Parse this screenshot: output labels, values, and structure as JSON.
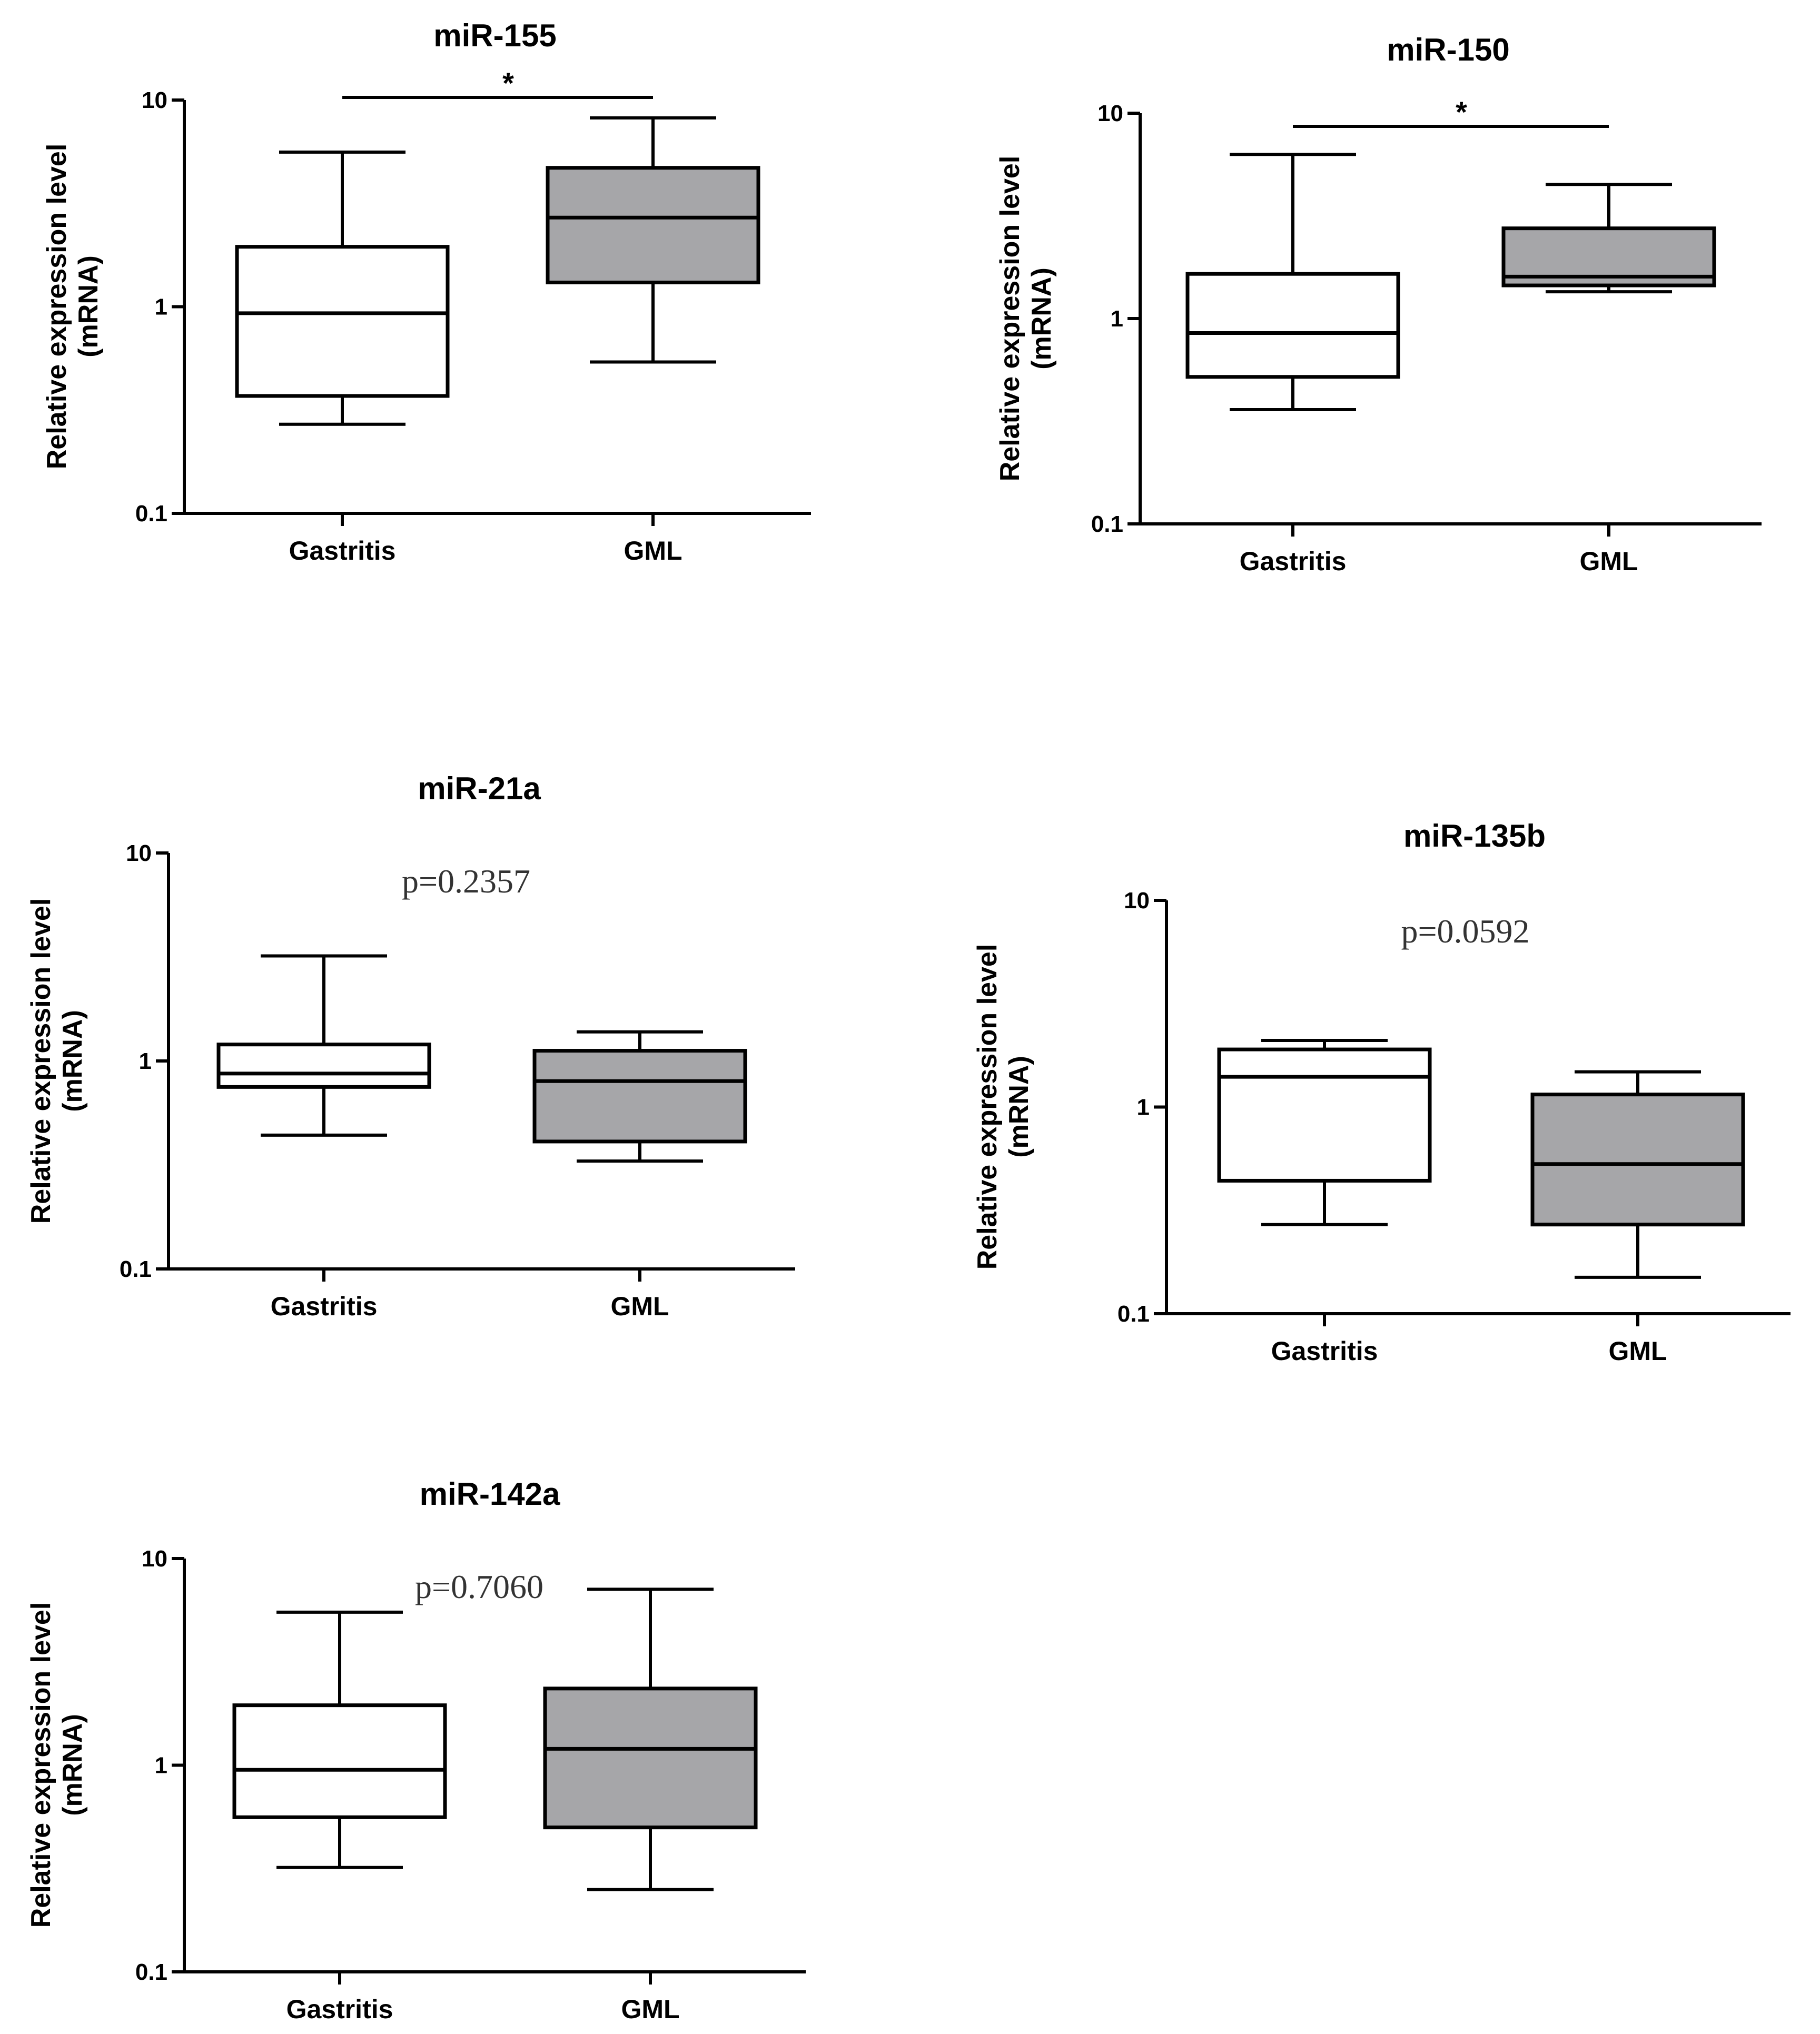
{
  "figure": "miRNA relative expression box plots",
  "colors": {
    "gastritis_fill": "#ffffff",
    "gml_fill": "#a6a6a9",
    "stroke": "#000000"
  },
  "chart_data": [
    {
      "type": "box",
      "title": "miR-155",
      "ylabel_lines": [
        "Relative expression level",
        "(mRNA)"
      ],
      "yscale": "log",
      "ylim": [
        0.1,
        10
      ],
      "yticks": [
        "10",
        "1",
        "0.1"
      ],
      "categories": [
        "Gastritis",
        "GML"
      ],
      "boxes": [
        {
          "name": "Gastritis",
          "min": 0.27,
          "q1": 0.37,
          "median": 0.93,
          "q3": 1.95,
          "max": 5.6
        },
        {
          "name": "GML",
          "min": 0.54,
          "q1": 1.31,
          "median": 2.7,
          "q3": 4.7,
          "max": 8.2
        }
      ],
      "annotation": {
        "kind": "significance",
        "text": "*"
      }
    },
    {
      "type": "box",
      "title": "miR-150",
      "ylabel_lines": [
        "Relative expression level",
        "(mRNA)"
      ],
      "yscale": "log",
      "ylim": [
        0.1,
        10
      ],
      "yticks": [
        "10",
        "1",
        "0.1"
      ],
      "categories": [
        "Gastritis",
        "GML"
      ],
      "boxes": [
        {
          "name": "Gastritis",
          "min": 0.36,
          "q1": 0.52,
          "median": 0.85,
          "q3": 1.65,
          "max": 6.3
        },
        {
          "name": "GML",
          "min": 1.35,
          "q1": 1.45,
          "median": 1.6,
          "q3": 2.75,
          "max": 4.5
        }
      ],
      "annotation": {
        "kind": "significance",
        "text": "*"
      }
    },
    {
      "type": "box",
      "title": "miR-21a",
      "ylabel_lines": [
        "Relative expression level",
        "(mRNA)"
      ],
      "yscale": "log",
      "ylim": [
        0.1,
        10
      ],
      "yticks": [
        "10",
        "1",
        "0.1"
      ],
      "categories": [
        "Gastritis",
        "GML"
      ],
      "boxes": [
        {
          "name": "Gastritis",
          "min": 0.44,
          "q1": 0.75,
          "median": 0.87,
          "q3": 1.2,
          "max": 3.2
        },
        {
          "name": "GML",
          "min": 0.33,
          "q1": 0.41,
          "median": 0.8,
          "q3": 1.12,
          "max": 1.38
        }
      ],
      "annotation": {
        "kind": "pvalue",
        "text": "p=0.2357"
      }
    },
    {
      "type": "box",
      "title": "miR-135b",
      "ylabel_lines": [
        "Relative expression level",
        "(mRNA)"
      ],
      "yscale": "log",
      "ylim": [
        0.1,
        10
      ],
      "yticks": [
        "10",
        "1",
        "0.1"
      ],
      "categories": [
        "Gastritis",
        "GML"
      ],
      "boxes": [
        {
          "name": "Gastritis",
          "min": 0.27,
          "q1": 0.44,
          "median": 1.4,
          "q3": 1.9,
          "max": 2.1
        },
        {
          "name": "GML",
          "min": 0.15,
          "q1": 0.27,
          "median": 0.53,
          "q3": 1.15,
          "max": 1.48
        }
      ],
      "annotation": {
        "kind": "pvalue",
        "text": "p=0.0592"
      }
    },
    {
      "type": "box",
      "title": "miR-142a",
      "ylabel_lines": [
        "Relative expression level",
        "(mRNA)"
      ],
      "yscale": "log",
      "ylim": [
        0.1,
        10
      ],
      "yticks": [
        "10",
        "1",
        "0.1"
      ],
      "categories": [
        "Gastritis",
        "GML"
      ],
      "boxes": [
        {
          "name": "Gastritis",
          "min": 0.32,
          "q1": 0.56,
          "median": 0.95,
          "q3": 1.95,
          "max": 5.5
        },
        {
          "name": "GML",
          "min": 0.25,
          "q1": 0.5,
          "median": 1.2,
          "q3": 2.35,
          "max": 7.1
        }
      ],
      "annotation": {
        "kind": "pvalue",
        "text": "p=0.7060"
      }
    }
  ]
}
